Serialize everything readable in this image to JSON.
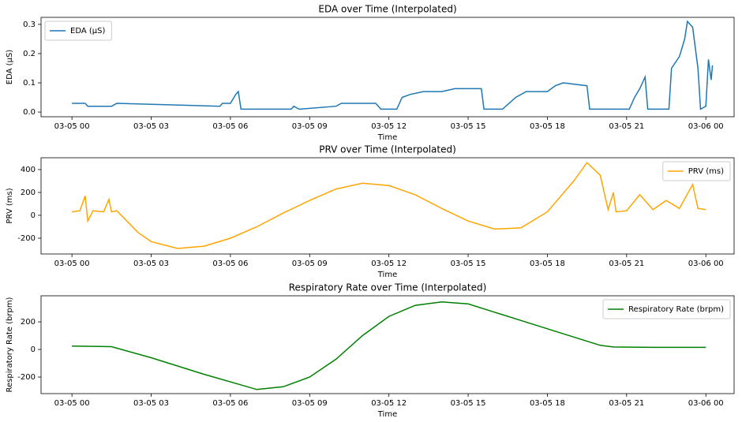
{
  "chart_data": [
    {
      "type": "line",
      "title": "EDA over Time (Interpolated)",
      "x_label": "Time",
      "y_label": "EDA (μS)",
      "legend": "upper left",
      "xlim": [
        -1.17,
        25.07
      ],
      "ylim": [
        -0.016,
        0.324
      ],
      "xticks": [
        {
          "value": 0,
          "label": "03-05 00"
        },
        {
          "value": 3,
          "label": "03-05 03"
        },
        {
          "value": 6,
          "label": "03-05 06"
        },
        {
          "value": 9,
          "label": "03-05 09"
        },
        {
          "value": 12,
          "label": "03-05 12"
        },
        {
          "value": 15,
          "label": "03-05 15"
        },
        {
          "value": 18,
          "label": "03-05 18"
        },
        {
          "value": 21,
          "label": "03-05 21"
        },
        {
          "value": 24,
          "label": "03-06 00"
        }
      ],
      "yticks": [
        {
          "value": 0,
          "label": "0.0"
        },
        0.1,
        0.2,
        0.3
      ],
      "x": [
        0,
        0.5,
        0.6,
        1.5,
        1.7,
        5.6,
        5.7,
        6.0,
        6.2,
        6.3,
        6.4,
        8.3,
        8.4,
        8.6,
        10.0,
        10.2,
        11.5,
        11.7,
        12.3,
        12.5,
        12.8,
        13.3,
        14.0,
        14.5,
        15.5,
        15.6,
        16.3,
        16.8,
        17.2,
        18.0,
        18.3,
        18.6,
        19.5,
        19.6,
        21.1,
        21.3,
        21.5,
        21.7,
        21.8,
        22.6,
        22.7,
        23.0,
        23.2,
        23.3,
        23.5,
        23.7,
        23.8,
        24.0,
        24.1,
        24.2,
        24.25
      ],
      "series": [
        {
          "name": "EDA (μS)",
          "color": "#1f77b4",
          "values": [
            0.03,
            0.03,
            0.02,
            0.02,
            0.03,
            0.02,
            0.03,
            0.03,
            0.06,
            0.07,
            0.01,
            0.01,
            0.02,
            0.01,
            0.02,
            0.03,
            0.03,
            0.01,
            0.01,
            0.05,
            0.06,
            0.07,
            0.07,
            0.08,
            0.08,
            0.01,
            0.01,
            0.05,
            0.07,
            0.07,
            0.09,
            0.1,
            0.09,
            0.01,
            0.01,
            0.05,
            0.08,
            0.12,
            0.01,
            0.01,
            0.15,
            0.19,
            0.25,
            0.31,
            0.29,
            0.15,
            0.01,
            0.02,
            0.18,
            0.11,
            0.16
          ]
        }
      ]
    },
    {
      "type": "line",
      "title": "PRV over Time (Interpolated)",
      "x_label": "Time",
      "y_label": "PRV (ms)",
      "legend": "upper right",
      "xlim": [
        -1.17,
        25.07
      ],
      "ylim": [
        -338,
        503
      ],
      "xticks": [
        {
          "value": 0,
          "label": "03-05 00"
        },
        {
          "value": 3,
          "label": "03-05 03"
        },
        {
          "value": 6,
          "label": "03-05 06"
        },
        {
          "value": 9,
          "label": "03-05 09"
        },
        {
          "value": 12,
          "label": "03-05 12"
        },
        {
          "value": 15,
          "label": "03-05 15"
        },
        {
          "value": 18,
          "label": "03-05 18"
        },
        {
          "value": 21,
          "label": "03-05 21"
        },
        {
          "value": 24,
          "label": "03-06 00"
        }
      ],
      "yticks": [
        -200,
        0,
        200,
        400
      ],
      "x": [
        0,
        0.3,
        0.5,
        0.6,
        0.8,
        1.2,
        1.4,
        1.5,
        1.7,
        2.5,
        3,
        4,
        5,
        6,
        7,
        8,
        9,
        10,
        11,
        12,
        13,
        14,
        15,
        16,
        17,
        18,
        19,
        19.5,
        20,
        20.3,
        20.5,
        20.6,
        21,
        21.5,
        22,
        22.5,
        23,
        23.5,
        23.7,
        24
      ],
      "series": [
        {
          "name": "PRV (ms)",
          "color": "#ffa500",
          "values": [
            30,
            40,
            170,
            -50,
            40,
            30,
            140,
            30,
            40,
            -150,
            -230,
            -290,
            -270,
            -200,
            -100,
            20,
            130,
            230,
            280,
            260,
            180,
            60,
            -50,
            -120,
            -110,
            30,
            300,
            460,
            350,
            50,
            200,
            30,
            40,
            180,
            50,
            130,
            60,
            270,
            60,
            50
          ]
        }
      ]
    },
    {
      "type": "line",
      "title": "Respiratory Rate over Time (Interpolated)",
      "x_label": "Time",
      "y_label": "Respiratory Rate (brpm)",
      "legend": "upper right",
      "xlim": [
        -1.17,
        25.07
      ],
      "ylim": [
        -320,
        389
      ],
      "xticks": [
        {
          "value": 0,
          "label": "03-05 00"
        },
        {
          "value": 3,
          "label": "03-05 03"
        },
        {
          "value": 6,
          "label": "03-05 06"
        },
        {
          "value": 9,
          "label": "03-05 09"
        },
        {
          "value": 12,
          "label": "03-05 12"
        },
        {
          "value": 15,
          "label": "03-05 15"
        },
        {
          "value": 18,
          "label": "03-05 18"
        },
        {
          "value": 21,
          "label": "03-05 21"
        },
        {
          "value": 24,
          "label": "03-06 00"
        }
      ],
      "yticks": [
        -200,
        0,
        200
      ],
      "x": [
        0,
        1.5,
        3,
        5,
        7,
        8,
        9,
        10,
        11,
        12,
        13,
        14,
        15,
        16,
        17,
        18,
        19,
        20,
        20.5,
        22,
        24
      ],
      "series": [
        {
          "name": "Respiratory Rate (brpm)",
          "color": "#008000",
          "values": [
            25,
            20,
            -60,
            -180,
            -290,
            -270,
            -200,
            -70,
            100,
            240,
            320,
            345,
            330,
            270,
            210,
            150,
            90,
            30,
            18,
            15,
            15
          ]
        }
      ]
    }
  ]
}
